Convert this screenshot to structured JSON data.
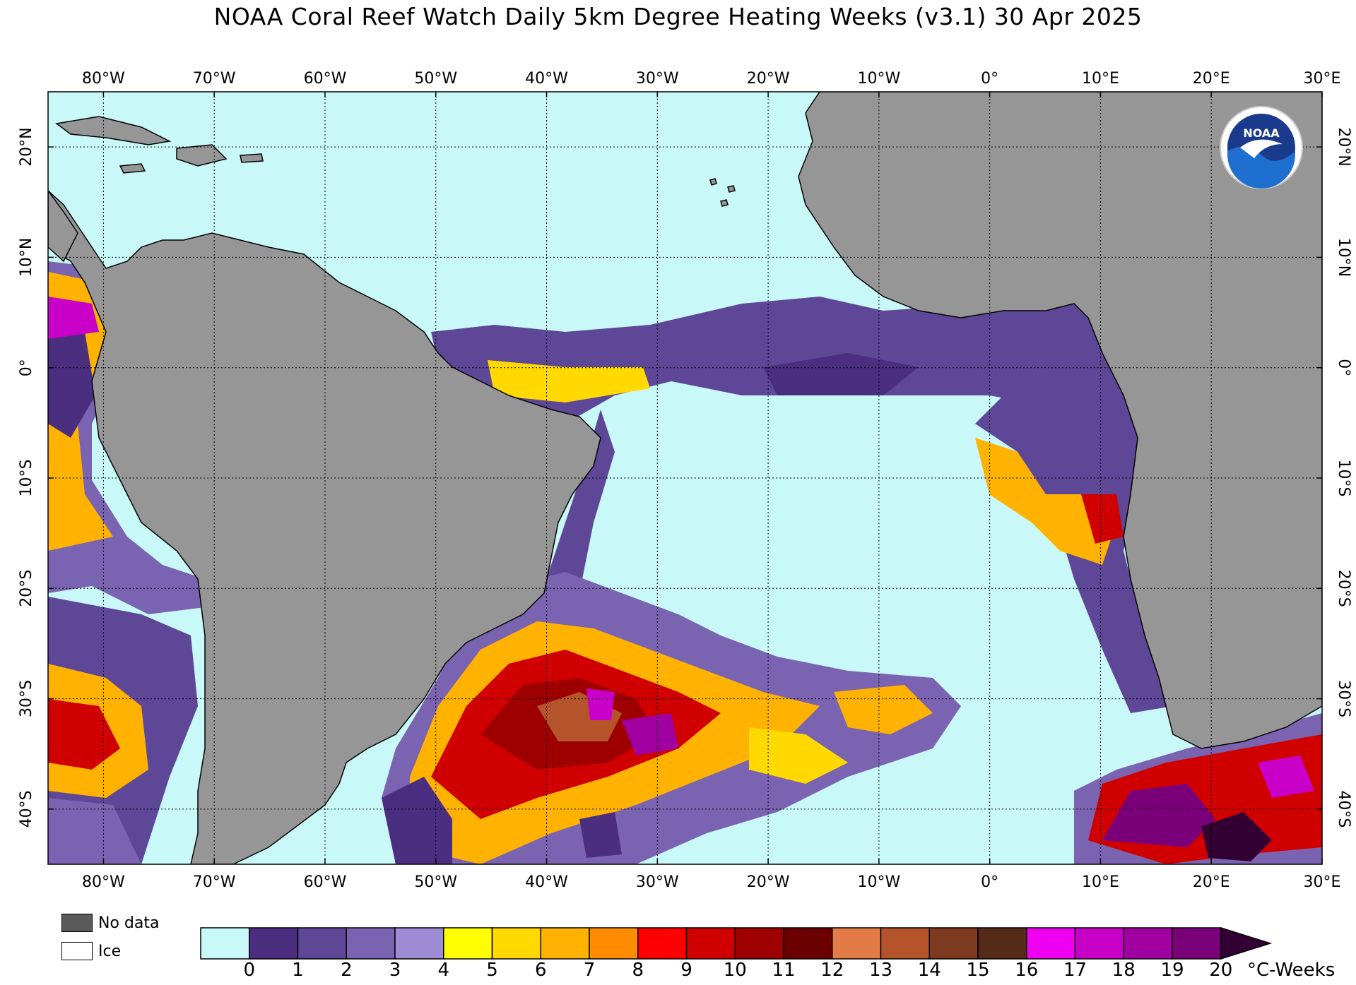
{
  "title": "NOAA Coral Reef Watch Daily 5km Degree Heating Weeks  (v3.1)   30 Apr 2025",
  "map": {
    "lon_range": [
      -85,
      30
    ],
    "lat_range": [
      -45,
      25
    ],
    "lon_ticks": [
      {
        "value": -80,
        "label": "80°W"
      },
      {
        "value": -70,
        "label": "70°W"
      },
      {
        "value": -60,
        "label": "60°W"
      },
      {
        "value": -50,
        "label": "50°W"
      },
      {
        "value": -40,
        "label": "40°W"
      },
      {
        "value": -30,
        "label": "30°W"
      },
      {
        "value": -20,
        "label": "20°W"
      },
      {
        "value": -10,
        "label": "10°W"
      },
      {
        "value": 0,
        "label": "0°"
      },
      {
        "value": 10,
        "label": "10°E"
      },
      {
        "value": 20,
        "label": "20°E"
      },
      {
        "value": 30,
        "label": "30°E"
      }
    ],
    "lat_ticks": [
      {
        "value": 20,
        "label": "20°N"
      },
      {
        "value": 10,
        "label": "10°N"
      },
      {
        "value": 0,
        "label": "0°"
      },
      {
        "value": -10,
        "label": "10°S"
      },
      {
        "value": -20,
        "label": "20°S"
      },
      {
        "value": -30,
        "label": "30°S"
      },
      {
        "value": -40,
        "label": "40°S"
      }
    ],
    "ocean_color": "#c8f8f8",
    "land_color": "#969696"
  },
  "logo_text": "NOAA",
  "legend": {
    "nodata_label": "No data",
    "ice_label": "Ice",
    "nodata_color": "#5a5a5a",
    "ice_color": "#ffffff"
  },
  "colorbar": {
    "unit": "°C-Weeks",
    "colors": [
      "#c8f8f8",
      "#4b2e80",
      "#5e4797",
      "#7a63b0",
      "#9d8bd3",
      "#ffff00",
      "#ffd900",
      "#ffb300",
      "#ff8c00",
      "#ff0000",
      "#d10000",
      "#9e0000",
      "#6b0000",
      "#e37b47",
      "#b5542b",
      "#7d3a1e",
      "#552a16",
      "#f000f0",
      "#c800c8",
      "#a000a0",
      "#7a007a"
    ],
    "arrow_color": "#320032",
    "tick_labels": [
      "0",
      "1",
      "2",
      "3",
      "4",
      "5",
      "6",
      "7",
      "8",
      "9",
      "10",
      "11",
      "12",
      "13",
      "14",
      "15",
      "16",
      "17",
      "18",
      "19",
      "20"
    ]
  }
}
